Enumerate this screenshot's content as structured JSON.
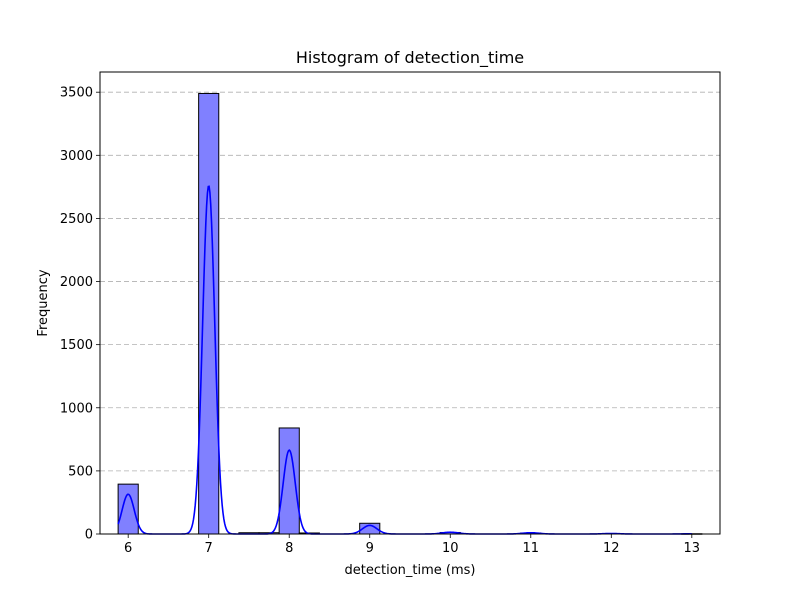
{
  "chart_data": {
    "type": "bar",
    "title": "Histogram of detection_time",
    "xlabel": "detection_time (ms)",
    "ylabel": "Frequency",
    "xlim": [
      5.65,
      13.35
    ],
    "ylim": [
      0,
      3660
    ],
    "x_ticks": [
      6,
      7,
      8,
      9,
      10,
      11,
      12,
      13
    ],
    "y_ticks": [
      0,
      500,
      1000,
      1500,
      2000,
      2500,
      3000,
      3500
    ],
    "grid": "y-dashed",
    "bar_fill": "#8080ff",
    "bar_edge": "#000000",
    "kde_color": "#0000ff",
    "bins": [
      {
        "x0": 5.875,
        "x1": 6.125,
        "count": 395
      },
      {
        "x0": 6.875,
        "x1": 7.125,
        "count": 3490
      },
      {
        "x0": 7.375,
        "x1": 7.625,
        "count": 10
      },
      {
        "x0": 7.625,
        "x1": 7.875,
        "count": 10
      },
      {
        "x0": 7.875,
        "x1": 8.125,
        "count": 840
      },
      {
        "x0": 8.125,
        "x1": 8.375,
        "count": 8
      },
      {
        "x0": 8.875,
        "x1": 9.125,
        "count": 85
      },
      {
        "x0": 9.875,
        "x1": 10.125,
        "count": 12
      },
      {
        "x0": 10.875,
        "x1": 11.125,
        "count": 8
      },
      {
        "x0": 11.875,
        "x1": 12.125,
        "count": 4
      },
      {
        "x0": 12.875,
        "x1": 13.125,
        "count": 2
      }
    ],
    "kde": [
      {
        "center": 6.0,
        "peak": 315,
        "sigma": 0.075
      },
      {
        "center": 7.0,
        "peak": 2760,
        "sigma": 0.075
      },
      {
        "center": 8.0,
        "peak": 665,
        "sigma": 0.075
      },
      {
        "center": 9.0,
        "peak": 68,
        "sigma": 0.09
      },
      {
        "center": 10.0,
        "peak": 14,
        "sigma": 0.1
      },
      {
        "center": 11.0,
        "peak": 10,
        "sigma": 0.1
      },
      {
        "center": 12.0,
        "peak": 4,
        "sigma": 0.1
      },
      {
        "center": 13.0,
        "peak": 2,
        "sigma": 0.1
      }
    ]
  }
}
